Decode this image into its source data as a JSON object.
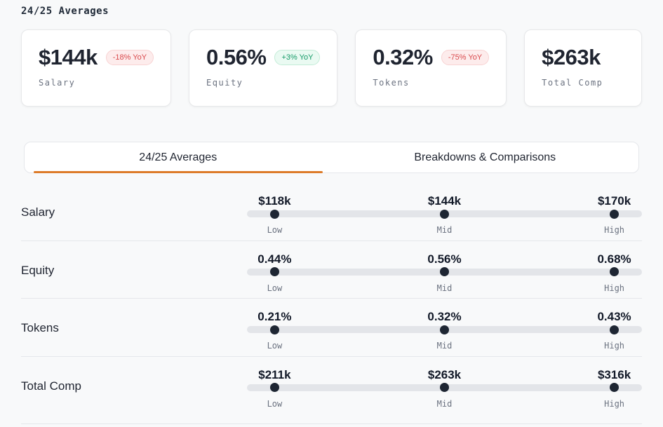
{
  "page_title": "24/25 Averages",
  "colors": {
    "accent_orange": "#dd7b29",
    "negative_text": "#d9494c",
    "negative_bg": "#fdecec",
    "positive_text": "#149a67",
    "positive_bg": "#eafaf2",
    "track": "#e3e5e9",
    "dot": "#1e2633",
    "border": "#e5e7eb",
    "text_dark": "#1f2430",
    "text_gray": "#6b7280",
    "page_bg": "#f8f9fa",
    "card_bg": "#ffffff"
  },
  "stat_cards": [
    {
      "value": "$144k",
      "label": "Salary",
      "badge": "-18% YoY",
      "badge_type": "negative"
    },
    {
      "value": "0.56%",
      "label": "Equity",
      "badge": "+3% YoY",
      "badge_type": "positive"
    },
    {
      "value": "0.32%",
      "label": "Tokens",
      "badge": "-75% YoY",
      "badge_type": "negative"
    },
    {
      "value": "$263k",
      "label": "Total Comp"
    }
  ],
  "tabs": [
    {
      "label": "24/25 Averages",
      "active": true
    },
    {
      "label": "Breakdowns & Comparisons",
      "active": false
    }
  ],
  "comp_rows": [
    {
      "label": "Salary",
      "low": {
        "value": "$118k",
        "label": "Low"
      },
      "mid": {
        "value": "$144k",
        "label": "Mid"
      },
      "high": {
        "value": "$170k",
        "label": "High"
      }
    },
    {
      "label": "Equity",
      "low": {
        "value": "0.44%",
        "label": "Low"
      },
      "mid": {
        "value": "0.56%",
        "label": "Mid"
      },
      "high": {
        "value": "0.68%",
        "label": "High"
      }
    },
    {
      "label": "Tokens",
      "low": {
        "value": "0.21%",
        "label": "Low"
      },
      "mid": {
        "value": "0.32%",
        "label": "Mid"
      },
      "high": {
        "value": "0.43%",
        "label": "High"
      }
    },
    {
      "label": "Total Comp",
      "low": {
        "value": "$211k",
        "label": "Low"
      },
      "mid": {
        "value": "$263k",
        "label": "Mid"
      },
      "high": {
        "value": "$316k",
        "label": "High"
      }
    }
  ]
}
